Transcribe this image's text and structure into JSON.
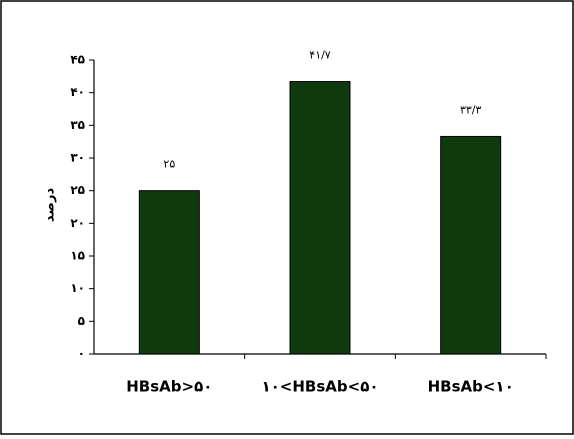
{
  "chart_data": {
    "type": "bar",
    "title": "",
    "xlabel": "",
    "ylabel": "درصد",
    "ylim": [
      0,
      45
    ],
    "y_ticks": [
      {
        "value": 0,
        "label": "۰"
      },
      {
        "value": 5,
        "label": "۵"
      },
      {
        "value": 10,
        "label": "۱۰"
      },
      {
        "value": 15,
        "label": "۱۵"
      },
      {
        "value": 20,
        "label": "۲۰"
      },
      {
        "value": 25,
        "label": "۲۵"
      },
      {
        "value": 30,
        "label": "۳۰"
      },
      {
        "value": 35,
        "label": "۳۵"
      },
      {
        "value": 40,
        "label": "۴۰"
      },
      {
        "value": 45,
        "label": "۴۵"
      }
    ],
    "categories": [
      "HBsAb>۵۰",
      "۱۰<HBsAb<۵۰",
      "HBsAb<۱۰"
    ],
    "values": [
      25,
      41.7,
      33.3
    ],
    "value_labels": [
      "۲۵",
      "۴۱/۷",
      "۳۳/۳"
    ],
    "bar_color": "#0e3a0e",
    "grid": false,
    "legend": "none"
  }
}
